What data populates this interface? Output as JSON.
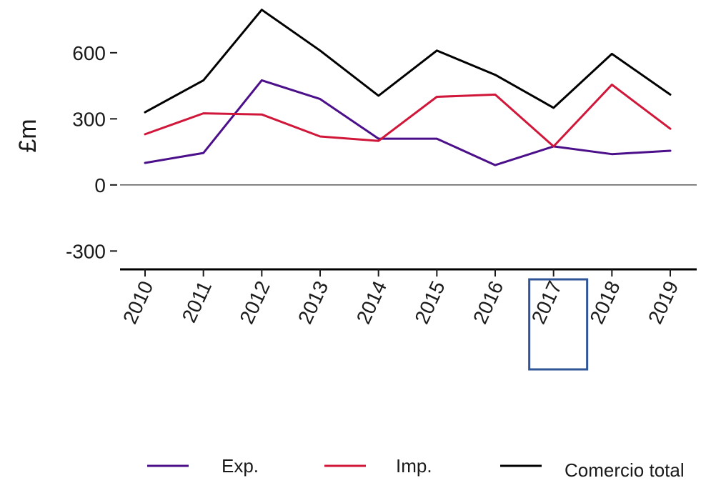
{
  "chart_data": {
    "type": "line",
    "categories": [
      "2010",
      "2011",
      "2012",
      "2013",
      "2014",
      "2015",
      "2016",
      "2017",
      "2018",
      "2019"
    ],
    "series": [
      {
        "name": "Exp.",
        "color": "#4b0f8a",
        "values": [
          100,
          145,
          475,
          390,
          210,
          210,
          90,
          175,
          140,
          155
        ]
      },
      {
        "name": "Imp.",
        "color": "#d0173a",
        "values": [
          230,
          325,
          320,
          220,
          200,
          400,
          410,
          175,
          455,
          255
        ]
      },
      {
        "name": "Comercio total",
        "color": "#000000",
        "values": [
          330,
          475,
          795,
          610,
          405,
          610,
          500,
          350,
          595,
          410
        ]
      }
    ],
    "ylabel": "£m",
    "ylim": [
      -380,
      820
    ],
    "yticks": [
      "-300",
      "0",
      "300",
      "600"
    ],
    "zero_line": true,
    "legend_position": "bottom",
    "highlight": {
      "category": "2017",
      "color": "#2f5597"
    }
  }
}
